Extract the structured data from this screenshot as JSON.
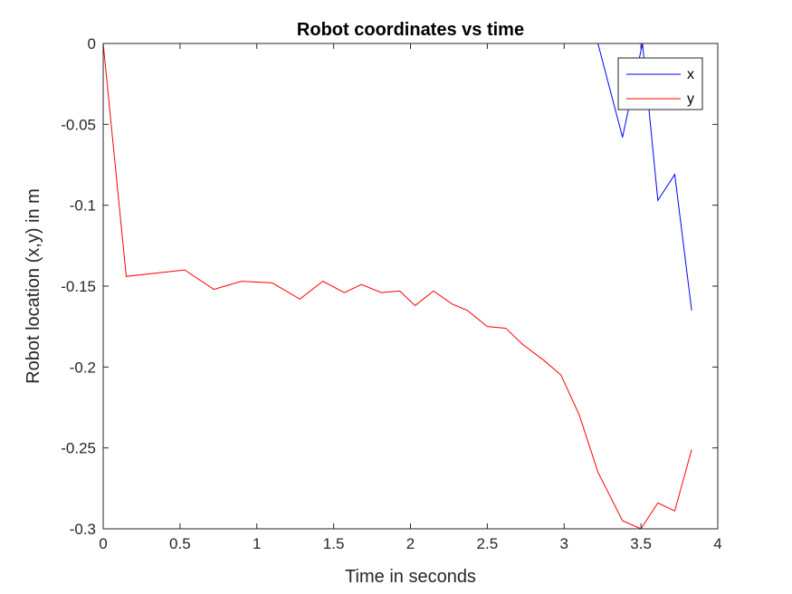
{
  "chart_data": {
    "type": "line",
    "title": "Robot coordinates vs time",
    "xlabel": "Time in seconds",
    "ylabel": "Robot location (x,y) in m",
    "xlim": [
      0,
      4
    ],
    "ylim": [
      -0.3,
      0
    ],
    "xticks": [
      0,
      0.5,
      1,
      1.5,
      2,
      2.5,
      3,
      3.5,
      4
    ],
    "xtick_labels": [
      "0",
      "0.5",
      "1",
      "1.5",
      "2",
      "2.5",
      "3",
      "3.5",
      "4"
    ],
    "yticks": [
      0,
      -0.05,
      -0.1,
      -0.15,
      -0.2,
      -0.25,
      -0.3
    ],
    "ytick_labels": [
      "0",
      "-0.05",
      "-0.1",
      "-0.15",
      "-0.2",
      "-0.25",
      "-0.3"
    ],
    "grid": false,
    "legend_position": "top-right",
    "series": [
      {
        "name": "x",
        "color": "#0000ff",
        "points": [
          [
            0,
            0
          ],
          [
            0.15,
            0
          ],
          [
            0.53,
            0
          ],
          [
            0.72,
            0
          ],
          [
            0.9,
            0
          ],
          [
            1.1,
            0
          ],
          [
            1.28,
            0
          ],
          [
            1.43,
            0
          ],
          [
            1.57,
            0
          ],
          [
            1.68,
            0
          ],
          [
            1.81,
            0
          ],
          [
            1.93,
            0
          ],
          [
            2.03,
            0
          ],
          [
            2.15,
            0
          ],
          [
            2.27,
            0
          ],
          [
            2.37,
            0
          ],
          [
            2.5,
            0
          ],
          [
            2.62,
            0
          ],
          [
            2.73,
            0
          ],
          [
            2.87,
            0
          ],
          [
            2.98,
            0
          ],
          [
            3.1,
            0
          ],
          [
            3.22,
            0
          ],
          [
            3.38,
            -0.058
          ],
          [
            3.51,
            0
          ],
          [
            3.61,
            -0.097
          ],
          [
            3.72,
            -0.081
          ],
          [
            3.83,
            -0.165
          ]
        ]
      },
      {
        "name": "y",
        "color": "#ff0000",
        "points": [
          [
            0,
            0
          ],
          [
            0.15,
            -0.144
          ],
          [
            0.53,
            -0.14
          ],
          [
            0.72,
            -0.152
          ],
          [
            0.9,
            -0.147
          ],
          [
            1.1,
            -0.148
          ],
          [
            1.28,
            -0.158
          ],
          [
            1.43,
            -0.147
          ],
          [
            1.57,
            -0.154
          ],
          [
            1.68,
            -0.149
          ],
          [
            1.81,
            -0.154
          ],
          [
            1.93,
            -0.153
          ],
          [
            2.03,
            -0.162
          ],
          [
            2.15,
            -0.153
          ],
          [
            2.27,
            -0.161
          ],
          [
            2.37,
            -0.165
          ],
          [
            2.5,
            -0.175
          ],
          [
            2.62,
            -0.176
          ],
          [
            2.73,
            -0.186
          ],
          [
            2.87,
            -0.196
          ],
          [
            2.98,
            -0.205
          ],
          [
            3.1,
            -0.23
          ],
          [
            3.22,
            -0.265
          ],
          [
            3.38,
            -0.295
          ],
          [
            3.5,
            -0.3
          ],
          [
            3.61,
            -0.284
          ],
          [
            3.72,
            -0.289
          ],
          [
            3.83,
            -0.251
          ]
        ]
      }
    ]
  }
}
